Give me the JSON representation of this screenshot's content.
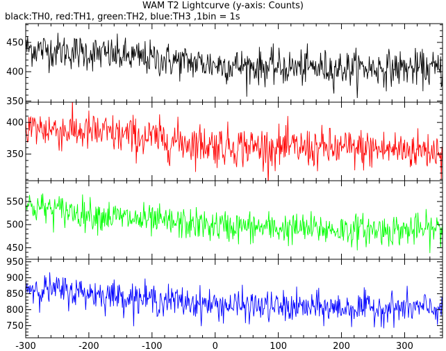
{
  "chart_data": {
    "type": "line",
    "title": "WAM T2 Lightcurve (y-axis: Counts)",
    "subtitle": "black:TH0, red:TH1, green:TH2, blue:TH3 ,1bin = 1s",
    "xlim": [
      -300,
      360
    ],
    "xticks": [
      -300,
      -200,
      -100,
      0,
      100,
      200,
      300
    ],
    "xtick_labels": [
      "-300",
      "-200",
      "-100",
      "0",
      "100",
      "200",
      "300"
    ],
    "bin_seconds": 1,
    "panels": [
      {
        "name": "TH0",
        "color": "#000000",
        "ylim": [
          348,
          482
        ],
        "yticks": [
          350,
          400,
          450
        ],
        "ytick_labels": [
          "350",
          "400",
          "450"
        ],
        "trend": {
          "x": [
            -300,
            -200,
            -100,
            0,
            100,
            200,
            300,
            360
          ],
          "y": [
            440,
            432,
            422,
            412,
            407,
            406,
            406,
            404
          ]
        },
        "noise_sd": 15
      },
      {
        "name": "TH1",
        "color": "#ff0000",
        "ylim": [
          308,
          432
        ],
        "yticks": [
          350,
          400
        ],
        "ytick_labels": [
          "350",
          "400"
        ],
        "trend": {
          "x": [
            -300,
            -200,
            -100,
            0,
            100,
            200,
            300,
            360
          ],
          "y": [
            392,
            385,
            375,
            364,
            360,
            358,
            357,
            356
          ]
        },
        "noise_sd": 16
      },
      {
        "name": "TH2",
        "color": "#00ff00",
        "ylim": [
          425,
          595
        ],
        "yticks": [
          450,
          500,
          550
        ],
        "ytick_labels": [
          "450",
          "500",
          "550"
        ],
        "trend": {
          "x": [
            -300,
            -200,
            -100,
            0,
            100,
            200,
            300,
            360
          ],
          "y": [
            540,
            523,
            507,
            497,
            492,
            489,
            488,
            490
          ]
        },
        "noise_sd": 17
      },
      {
        "name": "TH3",
        "color": "#0000ff",
        "ylim": [
          712,
          958
        ],
        "yticks": [
          750,
          800,
          850,
          900,
          950
        ],
        "ytick_labels": [
          "750",
          "800",
          "850",
          "900",
          "950"
        ],
        "trend": {
          "x": [
            -300,
            -200,
            -100,
            0,
            100,
            200,
            300,
            360
          ],
          "y": [
            870,
            852,
            833,
            815,
            808,
            805,
            805,
            803
          ]
        },
        "noise_sd": 24
      }
    ]
  }
}
